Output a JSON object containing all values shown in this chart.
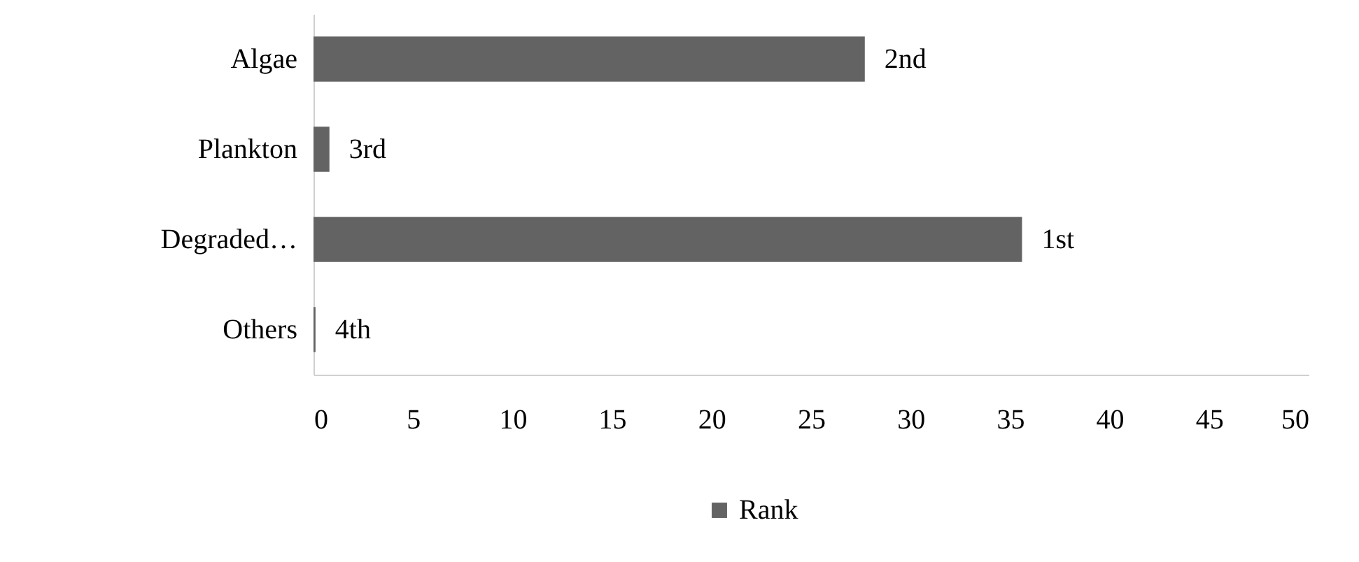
{
  "chart_data": {
    "type": "bar",
    "orientation": "horizontal",
    "categories": [
      "Algae",
      "Plankton",
      "Degraded…",
      "Others"
    ],
    "series": [
      {
        "name": "Rank",
        "color": "#636363",
        "values": [
          27.7,
          0.8,
          35.6,
          0.1
        ]
      }
    ],
    "annotations": [
      {
        "text": "2nd",
        "x": 27.7,
        "y": "Algae"
      },
      {
        "text": "3rd",
        "x": 0.8,
        "y": "Plankton"
      },
      {
        "text": "1st",
        "x": 35.6,
        "y": "Degraded…"
      },
      {
        "text": "4th",
        "x": 0.1,
        "y": "Others"
      }
    ],
    "xlim": [
      0,
      50
    ],
    "xticks": [
      0,
      5,
      10,
      15,
      20,
      25,
      30,
      35,
      40,
      45,
      50
    ],
    "grid": false,
    "legend": "bottom"
  }
}
